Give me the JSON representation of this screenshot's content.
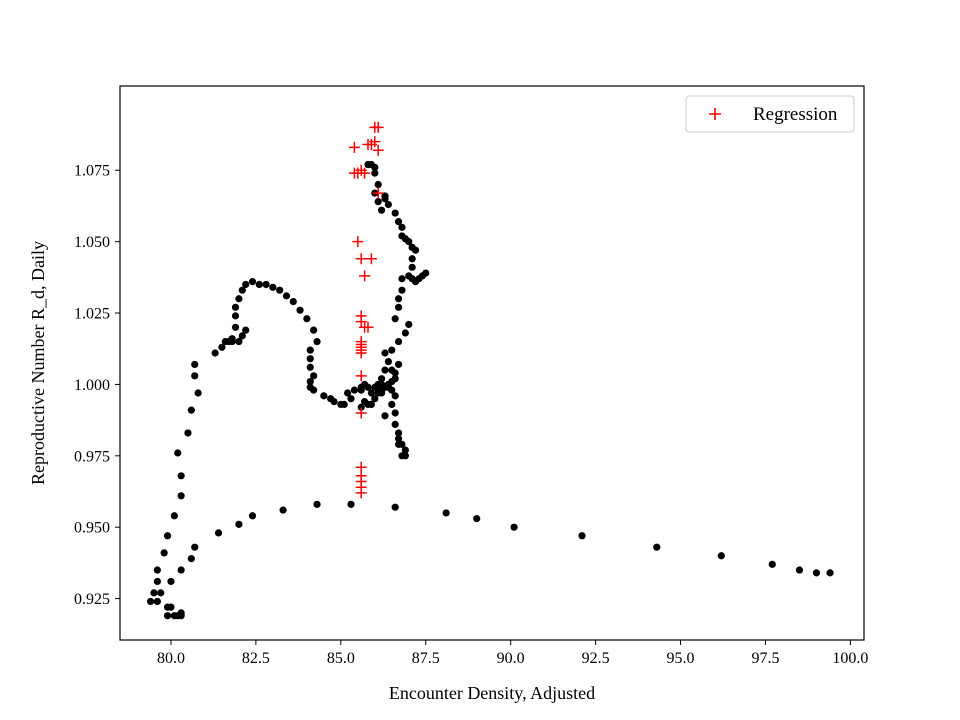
{
  "chart_data": {
    "type": "scatter",
    "title": "",
    "xlabel": "Encounter Density, Adjusted",
    "ylabel": "Reproductive Number R_d, Daily",
    "xlim": [
      78.5,
      100.4
    ],
    "ylim": [
      0.9105,
      1.1045
    ],
    "x_ticks": [
      80.0,
      82.5,
      85.0,
      87.5,
      90.0,
      92.5,
      95.0,
      97.5,
      100.0
    ],
    "x_tick_labels": [
      "80.0",
      "82.5",
      "85.0",
      "87.5",
      "90.0",
      "92.5",
      "95.0",
      "97.5",
      "100.0"
    ],
    "y_ticks": [
      0.925,
      0.95,
      0.975,
      1.0,
      1.025,
      1.05,
      1.075
    ],
    "y_tick_labels": [
      "0.925",
      "0.950",
      "0.975",
      "1.000",
      "1.025",
      "1.050",
      "1.075"
    ],
    "grid": false,
    "legend": {
      "position": "top-right",
      "entries": [
        {
          "label": "Regression",
          "marker": "plus",
          "color": "#ff0000"
        }
      ]
    },
    "series": [
      {
        "marker": "dot",
        "color": "#000000",
        "points": [
          [
            99.4,
            0.934
          ],
          [
            99.0,
            0.934
          ],
          [
            98.5,
            0.935
          ],
          [
            97.7,
            0.937
          ],
          [
            96.2,
            0.94
          ],
          [
            94.3,
            0.943
          ],
          [
            92.1,
            0.947
          ],
          [
            90.1,
            0.95
          ],
          [
            89.0,
            0.953
          ],
          [
            88.1,
            0.955
          ],
          [
            86.6,
            0.957
          ],
          [
            85.3,
            0.958
          ],
          [
            84.3,
            0.958
          ],
          [
            83.3,
            0.956
          ],
          [
            82.4,
            0.954
          ],
          [
            82.0,
            0.951
          ],
          [
            81.4,
            0.948
          ],
          [
            80.7,
            0.943
          ],
          [
            80.6,
            0.939
          ],
          [
            80.3,
            0.935
          ],
          [
            80.0,
            0.931
          ],
          [
            79.6,
            0.931
          ],
          [
            79.5,
            0.927
          ],
          [
            79.4,
            0.924
          ],
          [
            79.6,
            0.924
          ],
          [
            79.7,
            0.927
          ],
          [
            79.9,
            0.922
          ],
          [
            80.0,
            0.922
          ],
          [
            80.1,
            0.919
          ],
          [
            80.2,
            0.919
          ],
          [
            80.3,
            0.919
          ],
          [
            80.3,
            0.92
          ],
          [
            79.9,
            0.919
          ],
          [
            79.6,
            0.935
          ],
          [
            79.8,
            0.941
          ],
          [
            79.9,
            0.947
          ],
          [
            80.1,
            0.954
          ],
          [
            80.3,
            0.961
          ],
          [
            80.3,
            0.968
          ],
          [
            80.2,
            0.976
          ],
          [
            80.5,
            0.983
          ],
          [
            80.6,
            0.991
          ],
          [
            80.8,
            0.997
          ],
          [
            80.7,
            1.003
          ],
          [
            80.7,
            1.007
          ],
          [
            81.3,
            1.011
          ],
          [
            81.5,
            1.013
          ],
          [
            81.6,
            1.015
          ],
          [
            81.7,
            1.015
          ],
          [
            81.8,
            1.016
          ],
          [
            82.0,
            1.015
          ],
          [
            82.1,
            1.017
          ],
          [
            82.2,
            1.019
          ],
          [
            81.8,
            1.015
          ],
          [
            81.9,
            1.02
          ],
          [
            81.9,
            1.024
          ],
          [
            81.9,
            1.027
          ],
          [
            82.0,
            1.03
          ],
          [
            82.1,
            1.033
          ],
          [
            82.2,
            1.035
          ],
          [
            82.4,
            1.036
          ],
          [
            82.6,
            1.035
          ],
          [
            82.8,
            1.035
          ],
          [
            83.0,
            1.034
          ],
          [
            83.2,
            1.033
          ],
          [
            83.4,
            1.031
          ],
          [
            83.6,
            1.029
          ],
          [
            83.8,
            1.026
          ],
          [
            84.0,
            1.023
          ],
          [
            84.2,
            1.019
          ],
          [
            84.3,
            1.015
          ],
          [
            84.1,
            1.012
          ],
          [
            84.1,
            1.009
          ],
          [
            84.1,
            1.006
          ],
          [
            84.2,
            1.003
          ],
          [
            84.1,
            1.001
          ],
          [
            84.1,
            0.999
          ],
          [
            84.2,
            0.998
          ],
          [
            84.5,
            0.996
          ],
          [
            84.7,
            0.995
          ],
          [
            84.8,
            0.994
          ],
          [
            85.0,
            0.993
          ],
          [
            85.1,
            0.993
          ],
          [
            85.3,
            0.995
          ],
          [
            85.2,
            0.997
          ],
          [
            85.4,
            0.998
          ],
          [
            85.6,
            0.999
          ],
          [
            85.8,
            0.999
          ],
          [
            86.0,
            0.999
          ],
          [
            86.2,
            1.0
          ],
          [
            86.4,
            1.0
          ],
          [
            86.5,
            1.001
          ],
          [
            86.6,
            1.002
          ],
          [
            86.4,
            0.999
          ],
          [
            86.2,
            0.997
          ],
          [
            86.0,
            0.995
          ],
          [
            85.8,
            0.993
          ],
          [
            85.6,
            0.992
          ],
          [
            85.7,
            0.994
          ],
          [
            85.9,
            0.997
          ],
          [
            86.1,
            0.998
          ],
          [
            86.3,
            0.999
          ],
          [
            86.5,
            0.998
          ],
          [
            86.6,
            0.996
          ],
          [
            86.5,
            0.993
          ],
          [
            86.3,
            0.989
          ],
          [
            86.6,
            0.99
          ],
          [
            86.6,
            0.986
          ],
          [
            86.7,
            0.983
          ],
          [
            86.7,
            0.981
          ],
          [
            86.8,
            0.979
          ],
          [
            86.9,
            0.977
          ],
          [
            86.9,
            0.975
          ],
          [
            86.8,
            0.975
          ],
          [
            86.7,
            0.979
          ],
          [
            86.5,
            1.005
          ],
          [
            86.4,
            1.008
          ],
          [
            86.3,
            1.011
          ],
          [
            86.5,
            1.012
          ],
          [
            86.7,
            1.015
          ],
          [
            86.9,
            1.018
          ],
          [
            87.0,
            1.021
          ],
          [
            86.7,
            1.007
          ],
          [
            86.6,
            1.004
          ],
          [
            86.2,
            1.002
          ],
          [
            86.2,
            0.998
          ],
          [
            86.1,
            0.997
          ],
          [
            85.9,
            0.993
          ],
          [
            85.7,
            1.0
          ],
          [
            85.6,
            0.998
          ],
          [
            86.1,
            1.0
          ],
          [
            86.3,
            1.005
          ],
          [
            86.6,
            1.023
          ],
          [
            86.7,
            1.027
          ],
          [
            86.7,
            1.03
          ],
          [
            86.8,
            1.033
          ],
          [
            86.8,
            1.037
          ],
          [
            87.0,
            1.038
          ],
          [
            87.1,
            1.037
          ],
          [
            87.2,
            1.036
          ],
          [
            87.3,
            1.037
          ],
          [
            87.4,
            1.038
          ],
          [
            87.5,
            1.039
          ],
          [
            87.1,
            1.041
          ],
          [
            87.1,
            1.044
          ],
          [
            87.2,
            1.047
          ],
          [
            87.1,
            1.048
          ],
          [
            87.0,
            1.05
          ],
          [
            86.9,
            1.051
          ],
          [
            86.8,
            1.052
          ],
          [
            86.8,
            1.055
          ],
          [
            86.7,
            1.057
          ],
          [
            86.6,
            1.06
          ],
          [
            86.4,
            1.063
          ],
          [
            86.3,
            1.065
          ],
          [
            86.3,
            1.066
          ],
          [
            86.2,
            1.061
          ],
          [
            86.1,
            1.064
          ],
          [
            86.0,
            1.067
          ],
          [
            86.1,
            1.07
          ],
          [
            86.0,
            1.074
          ],
          [
            86.0,
            1.076
          ],
          [
            85.9,
            1.077
          ],
          [
            85.8,
            1.077
          ]
        ]
      },
      {
        "name": "Regression",
        "marker": "plus",
        "color": "#ff0000",
        "points": [
          [
            86.0,
            1.09
          ],
          [
            86.1,
            1.09
          ],
          [
            85.9,
            1.084
          ],
          [
            86.0,
            1.085
          ],
          [
            85.4,
            1.083
          ],
          [
            85.8,
            1.084
          ],
          [
            86.1,
            1.082
          ],
          [
            85.5,
            1.074
          ],
          [
            85.7,
            1.074
          ],
          [
            85.6,
            1.075
          ],
          [
            85.4,
            1.074
          ],
          [
            86.1,
            1.067
          ],
          [
            85.5,
            1.05
          ],
          [
            85.9,
            1.044
          ],
          [
            85.6,
            1.044
          ],
          [
            85.7,
            1.038
          ],
          [
            85.6,
            1.024
          ],
          [
            85.6,
            1.022
          ],
          [
            85.7,
            1.02
          ],
          [
            85.8,
            1.02
          ],
          [
            85.6,
            1.015
          ],
          [
            85.6,
            1.014
          ],
          [
            85.6,
            1.013
          ],
          [
            85.6,
            1.012
          ],
          [
            85.6,
            1.011
          ],
          [
            85.6,
            1.003
          ],
          [
            85.6,
            0.99
          ],
          [
            85.6,
            0.971
          ],
          [
            85.6,
            0.968
          ],
          [
            85.6,
            0.966
          ],
          [
            85.6,
            0.964
          ],
          [
            85.6,
            0.962
          ]
        ]
      }
    ]
  }
}
